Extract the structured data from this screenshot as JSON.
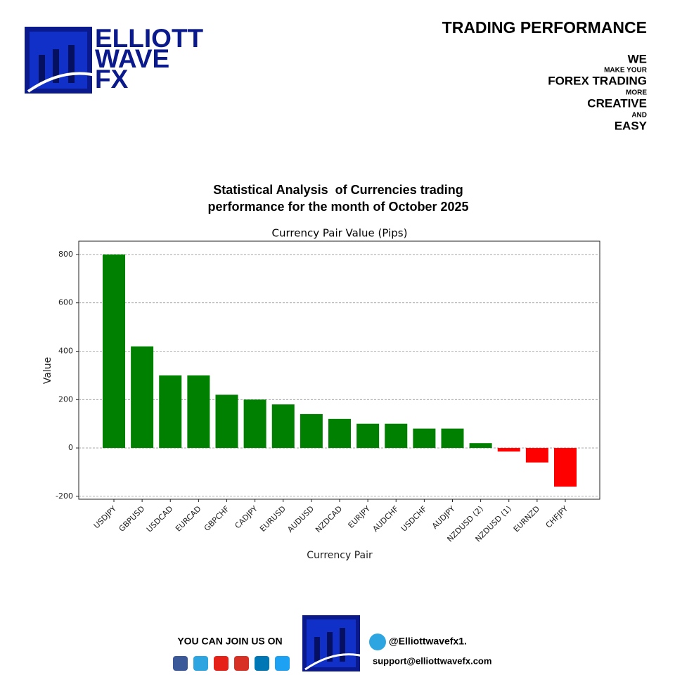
{
  "header": {
    "logo": [
      "ELLIOTT",
      "WAVE",
      "FX"
    ],
    "title": "TRADING PERFORMANCE",
    "tagline": [
      "WE",
      "MAKE YOUR",
      "FOREX TRADING",
      "MORE",
      "CREATIVE",
      "AND",
      "EASY"
    ]
  },
  "heading": [
    "Statistical Analysis  of Currencies trading",
    "performance for the month of October 2025"
  ],
  "chart_data": {
    "type": "bar",
    "title": "Currency Pair Value (Pips)",
    "x_label": "Currency Pair",
    "y_label": "Value",
    "categories": [
      "USDJPY",
      "GBPUSD",
      "USDCAD",
      "EURCAD",
      "GBPCHF",
      "CADJPY",
      "EURUSD",
      "AUDUSD",
      "NZDCAD",
      "EURJPY",
      "AUDCHF",
      "USDCHF",
      "AUDJPY",
      "NZDUSD (2)",
      "NZDUSD (1)",
      "EURNZD",
      "CHFJPY"
    ],
    "values": [
      800,
      420,
      300,
      300,
      220,
      200,
      180,
      140,
      120,
      100,
      100,
      80,
      80,
      20,
      -15,
      -60,
      -160
    ],
    "colors": [
      "#008000",
      "#008000",
      "#008000",
      "#008000",
      "#008000",
      "#008000",
      "#008000",
      "#008000",
      "#008000",
      "#008000",
      "#008000",
      "#008000",
      "#008000",
      "#008000",
      "#ff0000",
      "#ff0000",
      "#ff0000"
    ],
    "ylim": [
      -212,
      855
    ],
    "yticks": [
      -200,
      0,
      200,
      400,
      600,
      800
    ],
    "grid": true
  },
  "footer": {
    "join": "YOU CAN JOIN US ON",
    "telegram": "@Elliottwavefx1.",
    "email": "support@elliottwavefx.com"
  }
}
